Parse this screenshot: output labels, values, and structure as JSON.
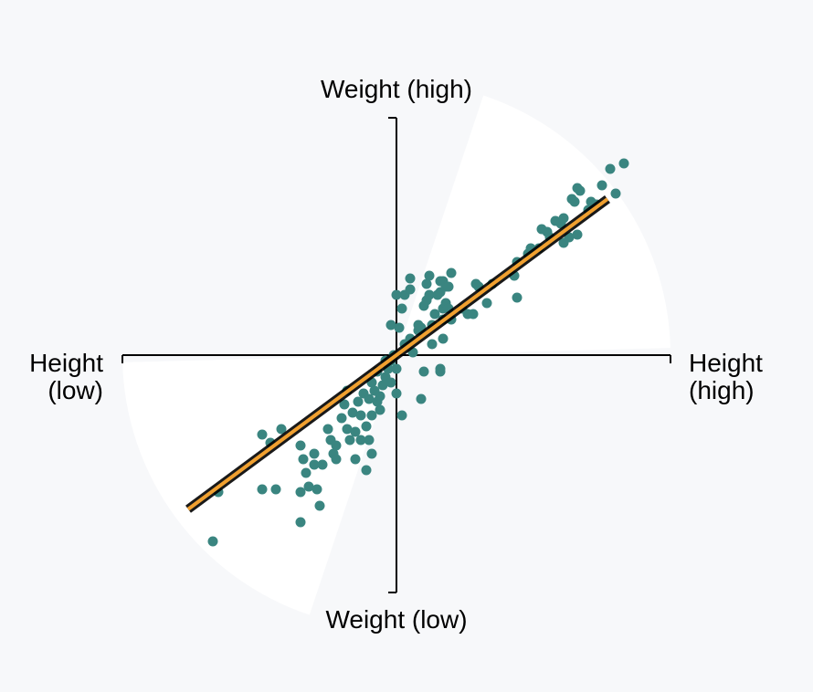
{
  "labels": {
    "top": "Weight (high)",
    "bottom": "Weight (low)",
    "left_line1": "Height",
    "left_line2": "(low)",
    "right_line1": "Height",
    "right_line2": "(high)"
  },
  "colors": {
    "background": "#f7f8fa",
    "sector": "#ffffff",
    "axis": "#000000",
    "point": "#3a8580",
    "fit_line": "#f0a030",
    "fit_line_outline": "#000000"
  },
  "chart_data": {
    "type": "scatter",
    "xlabel": "",
    "ylabel": "",
    "xlim": [
      -1,
      1
    ],
    "ylim": [
      -1,
      1
    ],
    "grid": false,
    "fit_line": {
      "slope": 0.74,
      "intercept": 0.0,
      "x_range": [
        -0.76,
        0.77
      ]
    },
    "sector_half_angle_deg": 35,
    "points": [
      [
        -0.67,
        -0.68
      ],
      [
        -0.65,
        -0.5
      ],
      [
        -0.49,
        -0.49
      ],
      [
        -0.44,
        -0.49
      ],
      [
        -0.49,
        -0.29
      ],
      [
        -0.46,
        -0.32
      ],
      [
        -0.42,
        -0.27
      ],
      [
        -0.35,
        -0.5
      ],
      [
        -0.33,
        -0.43
      ],
      [
        -0.32,
        -0.48
      ],
      [
        -0.29,
        -0.49
      ],
      [
        -0.28,
        -0.55
      ],
      [
        -0.35,
        -0.61
      ],
      [
        -0.35,
        -0.33
      ],
      [
        -0.34,
        -0.38
      ],
      [
        -0.3,
        -0.36
      ],
      [
        -0.3,
        -0.4
      ],
      [
        -0.27,
        -0.4
      ],
      [
        -0.25,
        -0.27
      ],
      [
        -0.24,
        -0.31
      ],
      [
        -0.23,
        -0.36
      ],
      [
        -0.22,
        -0.33
      ],
      [
        -0.22,
        -0.38
      ],
      [
        -0.2,
        -0.23
      ],
      [
        -0.19,
        -0.18
      ],
      [
        -0.18,
        -0.27
      ],
      [
        -0.18,
        -0.13
      ],
      [
        -0.17,
        -0.31
      ],
      [
        -0.16,
        -0.21
      ],
      [
        -0.15,
        -0.28
      ],
      [
        -0.15,
        -0.38
      ],
      [
        -0.14,
        -0.17
      ],
      [
        -0.13,
        -0.22
      ],
      [
        -0.13,
        -0.31
      ],
      [
        -0.12,
        -0.14
      ],
      [
        -0.11,
        -0.26
      ],
      [
        -0.11,
        -0.42
      ],
      [
        -0.1,
        -0.16
      ],
      [
        -0.1,
        -0.31
      ],
      [
        -0.09,
        -0.36
      ],
      [
        -0.09,
        -0.22
      ],
      [
        -0.09,
        -0.1
      ],
      [
        -0.08,
        -0.13
      ],
      [
        -0.07,
        -0.17
      ],
      [
        -0.07,
        -0.06
      ],
      [
        -0.06,
        -0.2
      ],
      [
        -0.06,
        -0.15
      ],
      [
        -0.05,
        -0.11
      ],
      [
        -0.04,
        -0.08
      ],
      [
        -0.04,
        -0.02
      ],
      [
        -0.03,
        -0.05
      ],
      [
        -0.02,
        -0.1
      ],
      [
        -0.02,
        -0.02
      ],
      [
        -0.01,
        0.0
      ],
      [
        0.0,
        -0.05
      ],
      [
        0.0,
        -0.14
      ],
      [
        0.02,
        -0.22
      ],
      [
        0.01,
        0.1
      ],
      [
        0.0,
        0.22
      ],
      [
        -0.02,
        0.11
      ],
      [
        0.03,
        0.04
      ],
      [
        0.05,
        0.06
      ],
      [
        0.06,
        0.01
      ],
      [
        0.02,
        0.17
      ],
      [
        0.03,
        0.22
      ],
      [
        0.05,
        0.24
      ],
      [
        0.05,
        0.28
      ],
      [
        0.08,
        0.09
      ],
      [
        0.08,
        0.11
      ],
      [
        0.09,
        0.1
      ],
      [
        0.09,
        -0.16
      ],
      [
        0.1,
        0.18
      ],
      [
        0.1,
        -0.06
      ],
      [
        0.11,
        0.2
      ],
      [
        0.11,
        0.26
      ],
      [
        0.12,
        0.22
      ],
      [
        0.12,
        0.29
      ],
      [
        0.13,
        0.04
      ],
      [
        0.13,
        0.11
      ],
      [
        0.14,
        0.15
      ],
      [
        0.15,
        0.22
      ],
      [
        0.16,
        0.23
      ],
      [
        0.16,
        0.27
      ],
      [
        0.16,
        -0.06
      ],
      [
        0.16,
        -0.05
      ],
      [
        0.17,
        0.06
      ],
      [
        0.17,
        0.13
      ],
      [
        0.17,
        0.17
      ],
      [
        0.17,
        0.27
      ],
      [
        0.18,
        0.19
      ],
      [
        0.18,
        0.25
      ],
      [
        0.19,
        0.17
      ],
      [
        0.19,
        0.25
      ],
      [
        0.2,
        0.13
      ],
      [
        0.2,
        0.3
      ],
      [
        0.24,
        0.17
      ],
      [
        0.26,
        0.15
      ],
      [
        0.28,
        0.15
      ],
      [
        0.29,
        0.26
      ],
      [
        0.3,
        0.25
      ],
      [
        0.33,
        0.19
      ],
      [
        0.35,
        0.26
      ],
      [
        0.44,
        0.21
      ],
      [
        0.43,
        0.29
      ],
      [
        0.44,
        0.34
      ],
      [
        0.48,
        0.37
      ],
      [
        0.49,
        0.39
      ],
      [
        0.52,
        0.39
      ],
      [
        0.53,
        0.46
      ],
      [
        0.55,
        0.45
      ],
      [
        0.56,
        0.43
      ],
      [
        0.58,
        0.49
      ],
      [
        0.6,
        0.48
      ],
      [
        0.61,
        0.41
      ],
      [
        0.61,
        0.5
      ],
      [
        0.63,
        0.43
      ],
      [
        0.64,
        0.57
      ],
      [
        0.65,
        0.56
      ],
      [
        0.66,
        0.61
      ],
      [
        0.66,
        0.44
      ],
      [
        0.67,
        0.6
      ],
      [
        0.7,
        0.53
      ],
      [
        0.71,
        0.56
      ],
      [
        0.73,
        0.55
      ],
      [
        0.75,
        0.62
      ],
      [
        0.78,
        0.68
      ],
      [
        0.8,
        0.59
      ],
      [
        0.83,
        0.7
      ]
    ]
  }
}
